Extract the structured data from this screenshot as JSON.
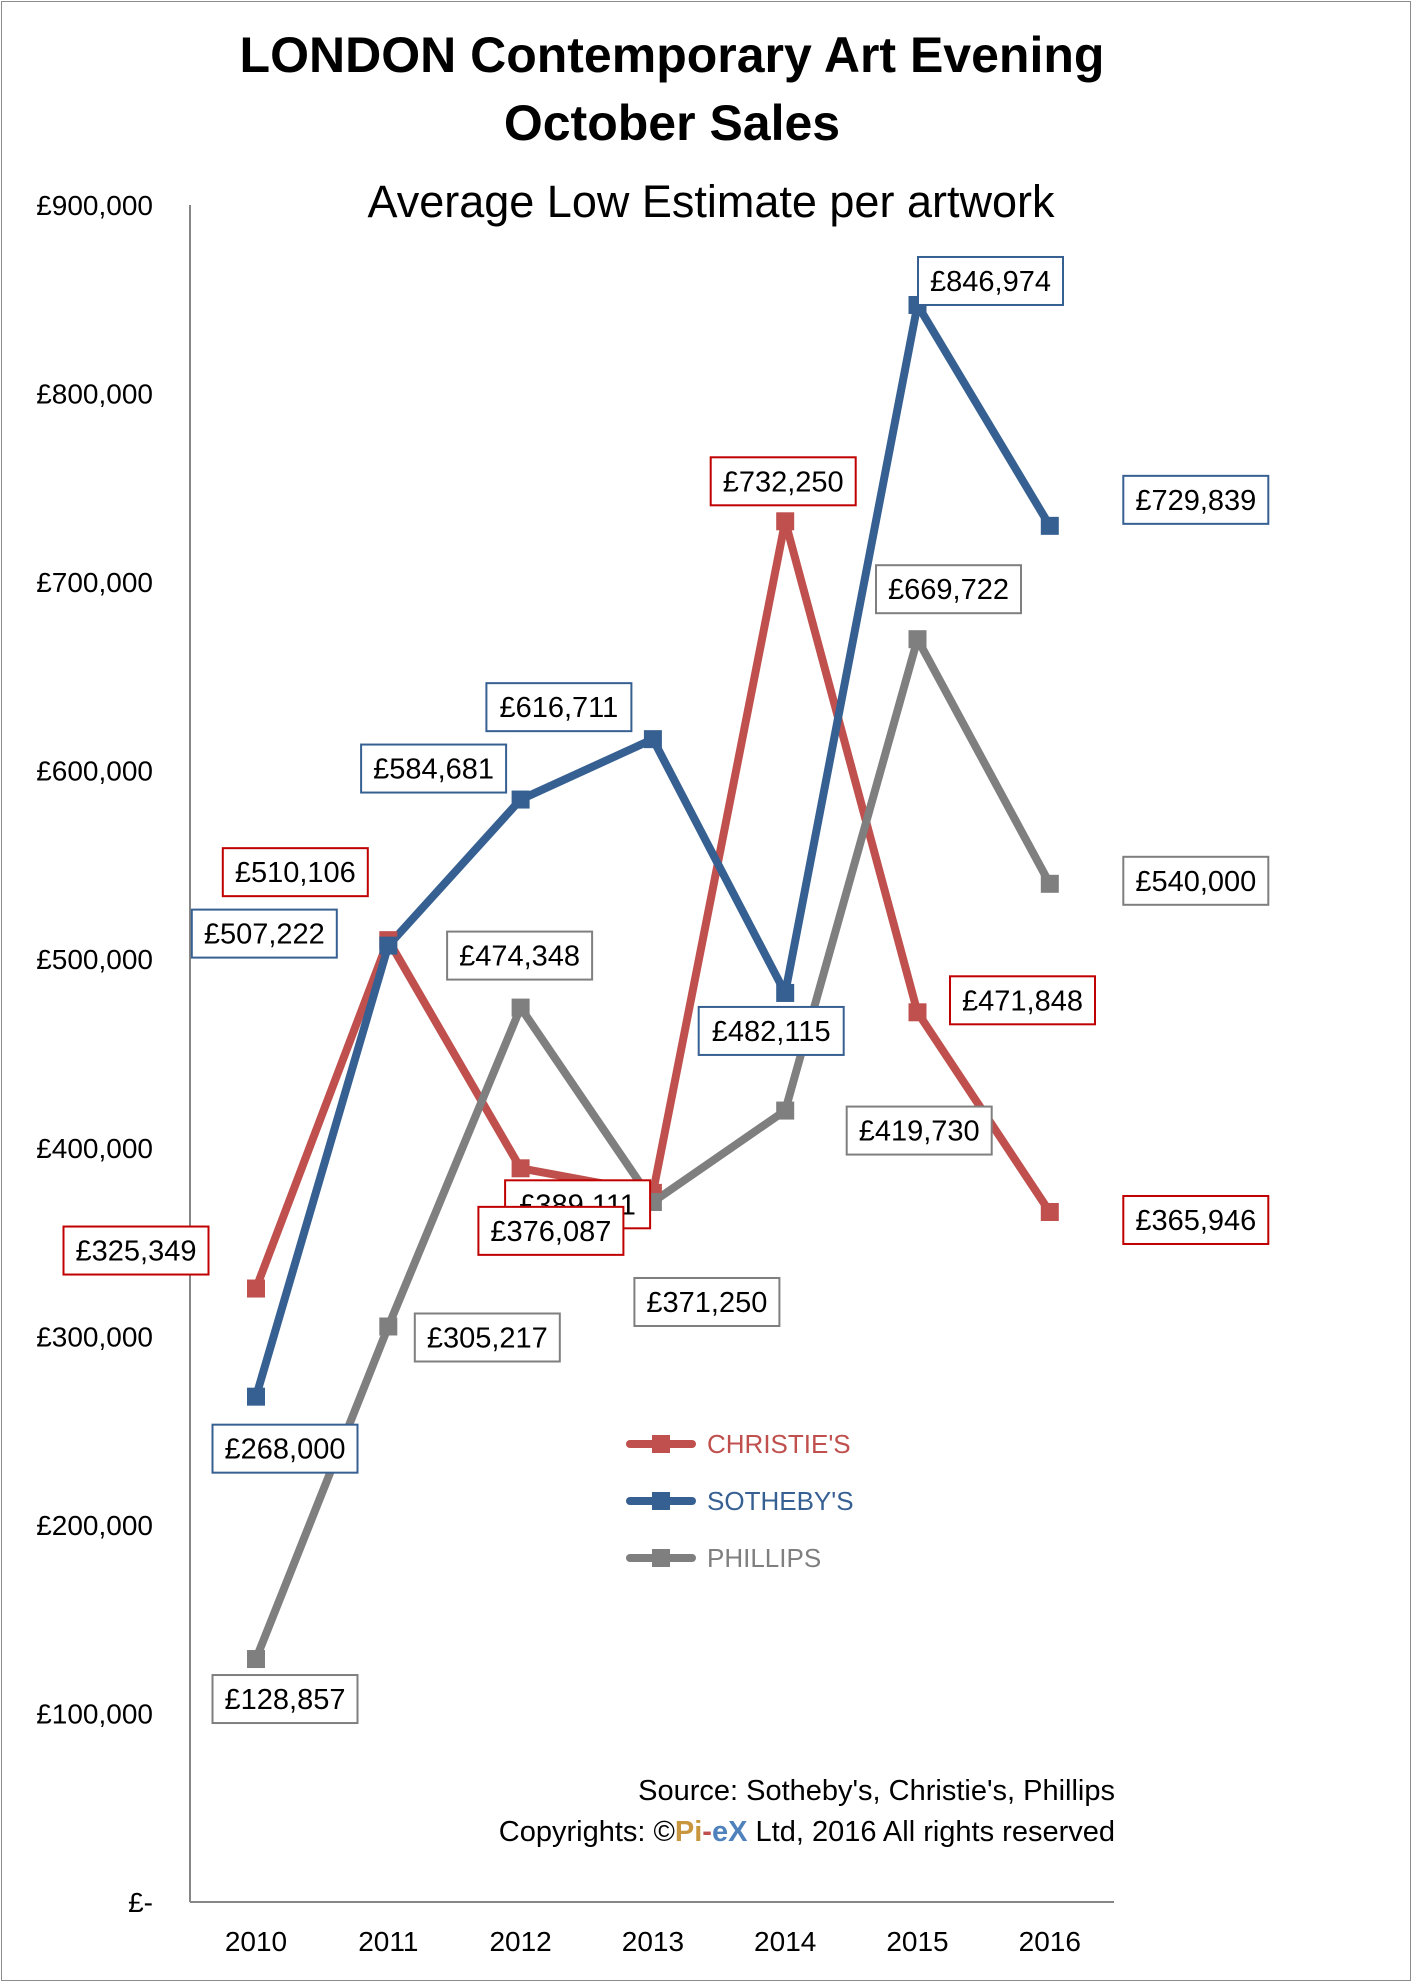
{
  "chart_data": {
    "type": "line",
    "title_line1": "LONDON Contemporary Art Evening",
    "title_line2": "October Sales",
    "subtitle": "Average Low Estimate per artwork",
    "xlabel": "",
    "ylabel": "",
    "categories": [
      "2010",
      "2011",
      "2012",
      "2013",
      "2014",
      "2015",
      "2016"
    ],
    "ylim": [
      0,
      900000
    ],
    "ytick_values": [
      0,
      100000,
      200000,
      300000,
      400000,
      500000,
      600000,
      700000,
      800000,
      900000
    ],
    "ytick_labels": [
      "£-",
      "£100,000",
      "£200,000",
      "£300,000",
      "£400,000",
      "£500,000",
      "£600,000",
      "£700,000",
      "£800,000",
      "£900,000"
    ],
    "grid": false,
    "legend_position": "center-bottom",
    "series": [
      {
        "name": "CHRISTIE'S",
        "color": "#c0504d",
        "label_border": "#c00000",
        "values": [
          325349,
          510106,
          389111,
          376087,
          732250,
          471848,
          365946
        ],
        "labels": [
          "£325,349",
          "£510,106",
          "£389,111",
          "£376,087",
          "£732,250",
          "£471,848",
          "£365,946"
        ]
      },
      {
        "name": "SOTHEBY'S",
        "color": "#376092",
        "label_border": "#376092",
        "values": [
          268000,
          507222,
          584681,
          616711,
          482115,
          846974,
          729839
        ],
        "labels": [
          "£268,000",
          "£507,222",
          "£584,681",
          "£616,711",
          "£482,115",
          "£846,974",
          "£729,839"
        ]
      },
      {
        "name": "PHILLIPS",
        "color": "#7f7f7f",
        "label_border": "#7f7f7f",
        "values": [
          128857,
          305217,
          474348,
          371250,
          419730,
          669722,
          540000
        ],
        "labels": [
          "£128,857",
          "£305,217",
          "£474,348",
          "£371,250",
          "£419,730",
          "£669,722",
          "£540,000"
        ]
      }
    ],
    "source_text": "Source: Sotheby's, Christie's, Phillips",
    "copyright": {
      "prefix": "Copyrights: ©",
      "brand_part1": "Pi",
      "brand_dash": "-",
      "brand_part2": "eX",
      "suffix": " Ltd, 2016 All rights reserved",
      "brand_color1": "#c8963e",
      "brand_color2": "#4f81bd"
    }
  }
}
